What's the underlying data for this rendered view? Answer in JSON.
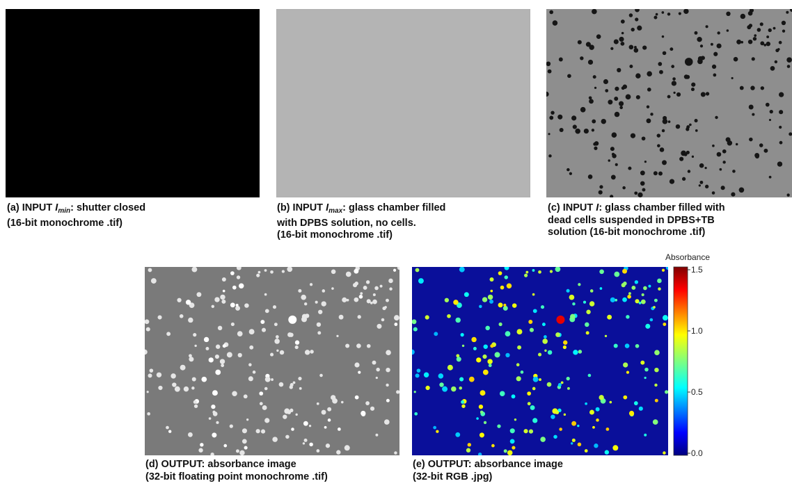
{
  "panels": [
    {
      "caption": [
        [
          {
            "text": "(a) INPUT "
          },
          {
            "text": "I",
            "style": "italic"
          },
          {
            "text": "min",
            "style": "sub"
          },
          {
            "text": ": shutter closed"
          }
        ],
        [
          {
            "text": "(16-bit monochrome .tif)"
          }
        ]
      ]
    },
    {
      "caption": [
        [
          {
            "text": "(b) INPUT "
          },
          {
            "text": "I",
            "style": "italic"
          },
          {
            "text": "max",
            "style": "sub"
          },
          {
            "text": ": glass chamber filled"
          }
        ],
        [
          {
            "text": "with DPBS solution, no cells."
          }
        ],
        [
          {
            "text": "(16-bit monochrome .tif)"
          }
        ]
      ]
    },
    {
      "caption": [
        [
          {
            "text": "(c) INPUT "
          },
          {
            "text": "I",
            "style": "italic"
          },
          {
            "text": ": glass chamber filled with"
          }
        ],
        [
          {
            "text": "dead cells suspended in DPBS+TB"
          }
        ],
        [
          {
            "text": "solution (16-bit monochrome .tif)"
          }
        ]
      ]
    },
    {
      "caption": [
        [
          {
            "text": "(d) OUTPUT: absorbance image"
          }
        ],
        [
          {
            "text": "(32-bit floating point monochrome .tif)"
          }
        ]
      ]
    },
    {
      "caption": [
        [
          {
            "text": "(e) OUTPUT: absorbance image"
          }
        ],
        [
          {
            "text": "(32-bit RGB .jpg)"
          }
        ]
      ]
    }
  ],
  "colorbar": {
    "label": "Absorbance",
    "lim": [
      0,
      1.5
    ],
    "ticks": [
      {
        "value": 0,
        "label": "0.0"
      },
      0.5,
      {
        "value": 1,
        "label": "1.0"
      },
      1.5
    ]
  }
}
